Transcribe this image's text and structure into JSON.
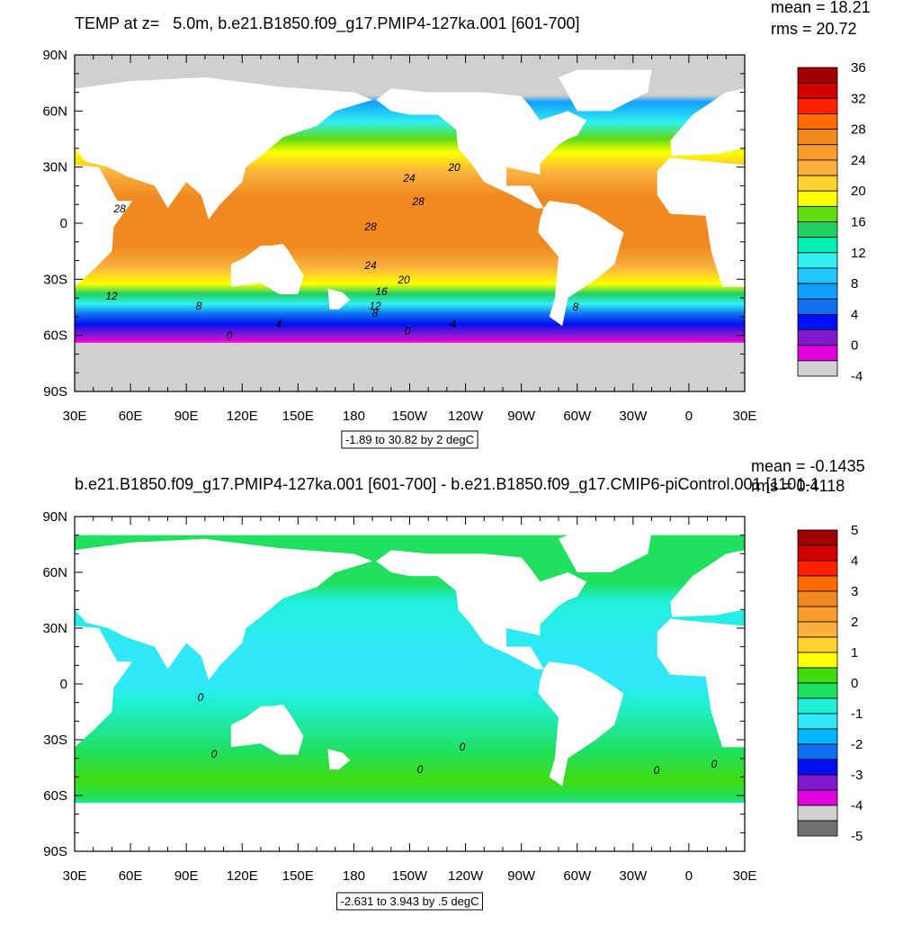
{
  "panels": [
    {
      "title": "TEMP at z=   5.0m, b.e21.B1850.f09_g17.PMIP4-127ka.001 [601-700]",
      "stats": [
        "mean = 18.21",
        "rms = 20.72"
      ],
      "lat_labels": [
        "90N",
        "60N",
        "30N",
        "0",
        "30S",
        "60S",
        "90S"
      ],
      "lon_labels": [
        "30E",
        "60E",
        "90E",
        "120E",
        "150E",
        "180",
        "150W",
        "120W",
        "90W",
        "60W",
        "30W",
        "0",
        "30E"
      ],
      "info": "-1.89 to 30.82 by 2 degC",
      "colorbar": {
        "labels": [
          36,
          32,
          28,
          24,
          20,
          16,
          12,
          8,
          4,
          0,
          -4
        ],
        "colors": [
          "#a00000",
          "#d00000",
          "#ff2000",
          "#ff6a00",
          "#f08a20",
          "#f89c2c",
          "#fbb040",
          "#ffd230",
          "#ffff00",
          "#60dc10",
          "#20d060",
          "#00f0b0",
          "#30f0f0",
          "#20c8ff",
          "#10a0ff",
          "#1070f0",
          "#0010f0",
          "#8018d0",
          "#e000e0",
          "#d0d0d0"
        ]
      },
      "contour_labels": [
        28,
        24,
        20,
        28,
        28,
        24,
        20,
        16,
        12,
        12,
        8,
        8,
        8,
        4,
        4,
        0,
        0
      ]
    },
    {
      "title": "b.e21.B1850.f09_g17.PMIP4-127ka.001 [601-700] - b.e21.B1850.f09_g17.CMIP6-piControl.001 [1101-1",
      "stats": [
        "mean = -0.1435",
        "rms = 0.4118"
      ],
      "lat_labels": [
        "90N",
        "60N",
        "30N",
        "0",
        "30S",
        "60S",
        "90S"
      ],
      "lon_labels": [
        "30E",
        "60E",
        "90E",
        "120E",
        "150E",
        "180",
        "150W",
        "120W",
        "90W",
        "60W",
        "30W",
        "0",
        "30E"
      ],
      "info": "-2.631 to 3.943 by .5 degC",
      "colorbar": {
        "labels": [
          5,
          4,
          3,
          2,
          1,
          0,
          -1,
          -2,
          -3,
          -4,
          -5
        ],
        "colors": [
          "#a00000",
          "#d00000",
          "#ff2000",
          "#ff6a00",
          "#f08a20",
          "#f89c2c",
          "#fbb040",
          "#ffd230",
          "#ffff00",
          "#40dc10",
          "#20e060",
          "#20f0d8",
          "#30e8f8",
          "#00b8ff",
          "#1070f0",
          "#0010f0",
          "#8018d0",
          "#e000e0",
          "#d0d0d0",
          "#707070"
        ]
      },
      "contour_labels": [
        0,
        0,
        0,
        0,
        0,
        0
      ]
    }
  ]
}
